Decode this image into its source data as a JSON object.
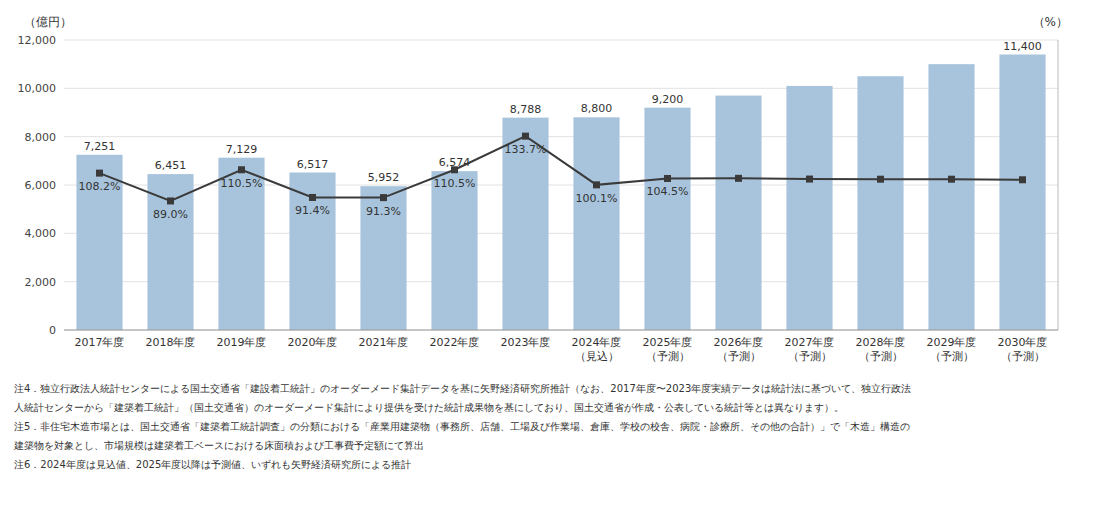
{
  "chart_data": {
    "type": "bar",
    "categories": [
      "2017年度",
      "2018年度",
      "2019年度",
      "2020年度",
      "2021年度",
      "2022年度",
      "2023年度",
      "2024年度\n（見込）",
      "2025年度\n（予測）",
      "2026年度\n（予測）",
      "2027年度\n（予測）",
      "2028年度\n（予測）",
      "2029年度\n（予測）",
      "2030年度\n（予測）"
    ],
    "series": [
      {
        "type": "bar",
        "color": "#a8c4dc",
        "values": [
          7251,
          6451,
          7129,
          6517,
          5952,
          6574,
          8788,
          8800,
          9200,
          9700,
          10100,
          10500,
          11000,
          11400
        ],
        "value_labels": [
          "7,251",
          "6,451",
          "7,129",
          "6,517",
          "5,952",
          "6,574",
          "8,788",
          "8,800",
          "9,200",
          null,
          null,
          null,
          null,
          "11,400"
        ]
      },
      {
        "type": "line",
        "axis": "y2",
        "color": "#3a3a3a",
        "marker": "square",
        "values": [
          108.2,
          89.0,
          110.5,
          91.4,
          91.3,
          110.5,
          133.7,
          100.1,
          104.5,
          104.6,
          104.1,
          104.0,
          104.0,
          103.6
        ],
        "value_labels": [
          "108.2%",
          "89.0%",
          "110.5%",
          "91.4%",
          "91.3%",
          "110.5%",
          "133.7%",
          "100.1%",
          "104.5%",
          null,
          null,
          null,
          null,
          null
        ]
      }
    ],
    "ylabel": "（億円）",
    "y2label": "（%）",
    "ylim": [
      0,
      12000
    ],
    "yticks": [
      0,
      {
        "value": 2000,
        "label": "2,000"
      },
      {
        "value": 4000,
        "label": "4,000"
      },
      {
        "value": 6000,
        "label": "6,000"
      },
      {
        "value": 8000,
        "label": "8,000"
      },
      {
        "value": 10000,
        "label": "10,000"
      },
      {
        "value": 12000,
        "label": "12,000"
      }
    ],
    "y2lim": [
      0,
      200
    ],
    "y2ticks": [],
    "grid": true,
    "data_labels": true,
    "annotations": [
      "注4．独立行政法人統計センターによる国土交通省「建設着工統計」のオーダーメード集計データを基に矢野経済研究所推計（なお、2017年度〜2023年度実績データは統計法に基づいて、独立行政法",
      "人統計センターから「建築着工統計」（国土交通省）のオーダーメード集計により提供を受けた統計成果物を基にしており、国土交通省が作成・公表している統計等とは異なります）。",
      "注5．非住宅木造市場とは、国土交通省「建築着工統計調査」の分類における「産業用建築物（事務所、店舗、工場及び作業場、倉庫、学校の校舎、病院・診療所、その他の合計）」で「木造」構造の",
      "建築物を対象とし、市場規模は建築着工ベースにおける床面積および工事費予定額にて算出",
      "注6．2024年度は見込値、2025年度以降は予測値、いずれも矢野経済研究所による推計"
    ]
  }
}
